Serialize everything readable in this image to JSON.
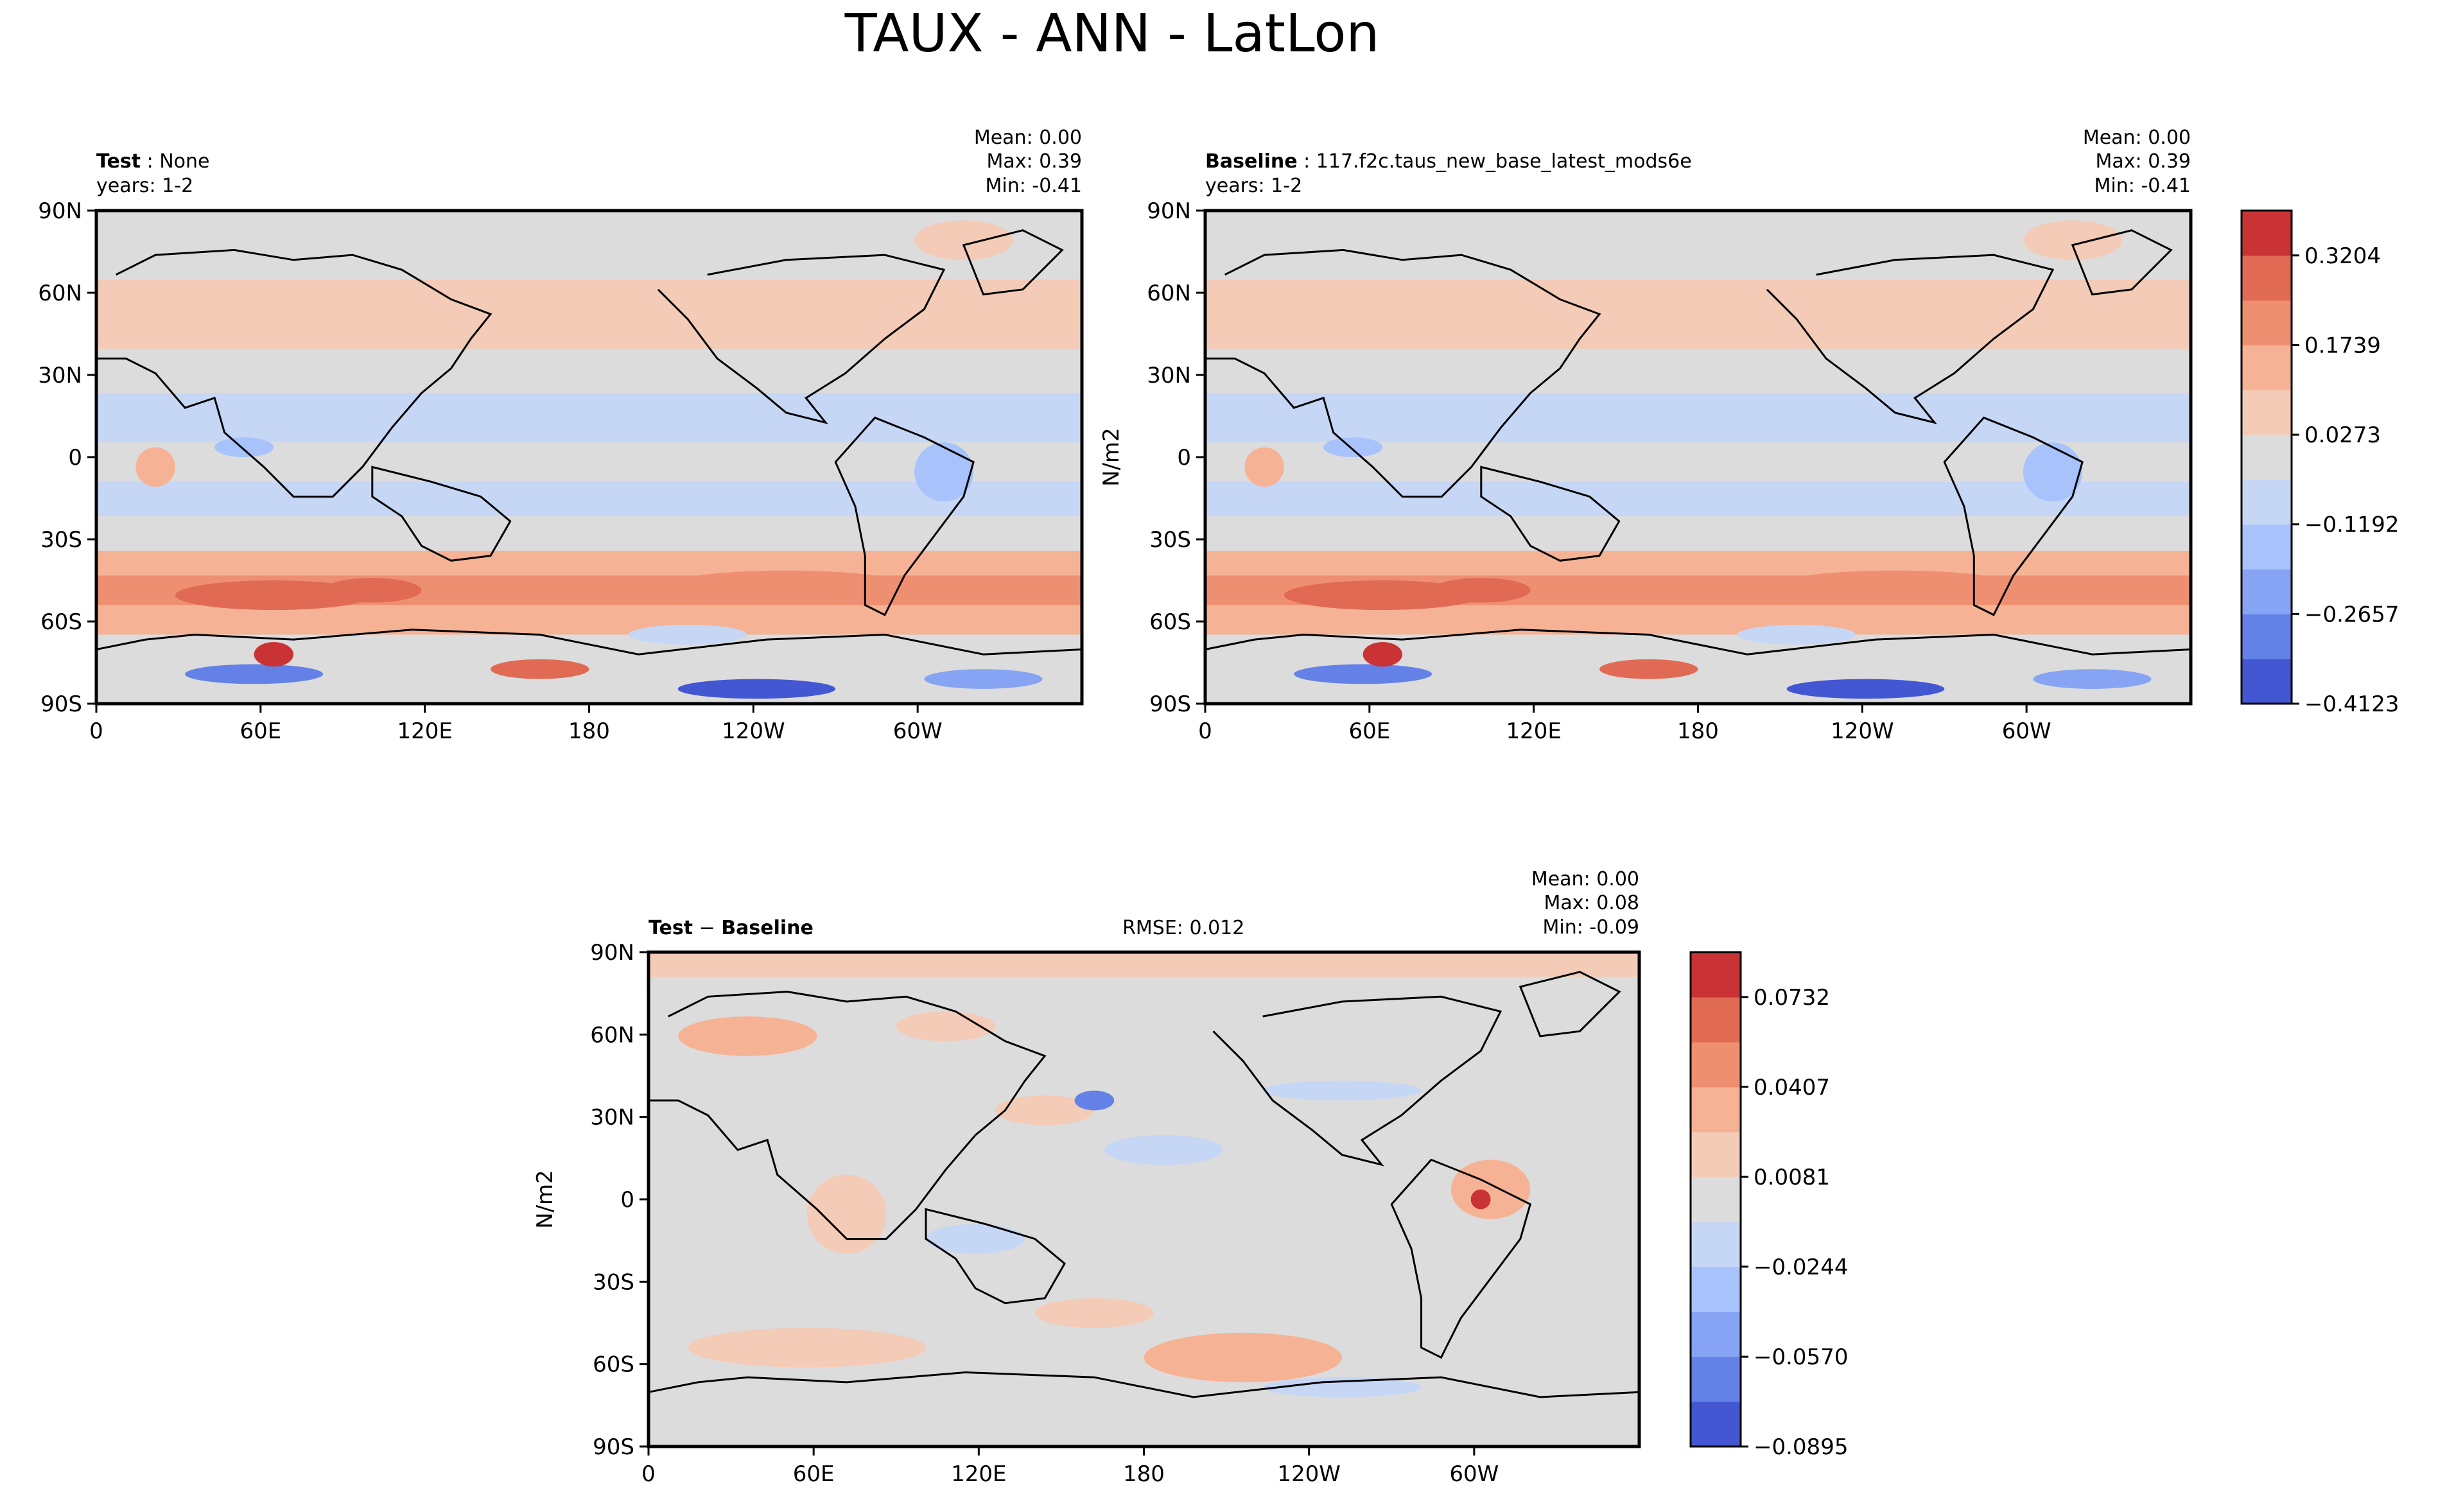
{
  "page": {
    "title": "TAUX - ANN - LatLon"
  },
  "chart_data": [
    {
      "type": "heatmap",
      "id": "test",
      "label_bold": "Test",
      "label_text": "None",
      "years": "years: 1-2",
      "stats": {
        "mean": "Mean:  0.00",
        "max": "Max:  0.39",
        "min": "Min: -0.41"
      },
      "xticks": [
        "0",
        "60E",
        "120E",
        "180",
        "120W",
        "60W"
      ],
      "yticks": [
        "90N",
        "60N",
        "30N",
        "0",
        "30S",
        "60S",
        "90S"
      ],
      "xlim": [
        0,
        360
      ],
      "ylim": [
        -90,
        90
      ],
      "grid": false
    },
    {
      "type": "heatmap",
      "id": "baseline",
      "label_bold": "Baseline",
      "label_text": "117.f2c.taus_new_base_latest_mods6e",
      "years": "years: 1-2",
      "ylabel": "N/m2",
      "stats": {
        "mean": "Mean:  0.00",
        "max": "Max:  0.39",
        "min": "Min: -0.41"
      },
      "xticks": [
        "0",
        "60E",
        "120E",
        "180",
        "120W",
        "60W"
      ],
      "yticks": [
        "90N",
        "60N",
        "30N",
        "0",
        "30S",
        "60S",
        "90S"
      ],
      "xlim": [
        0,
        360
      ],
      "ylim": [
        -90,
        90
      ],
      "grid": false,
      "colorbar": {
        "tick_labels": [
          "0.3204",
          "0.1739",
          "0.0273",
          "−0.1192",
          "−0.2657",
          "−0.4123"
        ],
        "levels": [
          0.3204,
          0.1739,
          0.0273,
          -0.1192,
          -0.2657,
          -0.4123
        ]
      }
    },
    {
      "type": "heatmap",
      "id": "diff",
      "label_bold_a": "Test",
      "label_minus": "−",
      "label_bold_b": "Baseline",
      "rmse": "RMSE: 0.012",
      "ylabel": "N/m2",
      "stats": {
        "mean": "Mean:  0.00",
        "max": "Max:  0.08",
        "min": "Min: -0.09"
      },
      "xticks": [
        "0",
        "60E",
        "120E",
        "180",
        "120W",
        "60W"
      ],
      "yticks": [
        "90N",
        "60N",
        "30N",
        "0",
        "30S",
        "60S",
        "90S"
      ],
      "xlim": [
        0,
        360
      ],
      "ylim": [
        -90,
        90
      ],
      "grid": false,
      "colorbar": {
        "tick_labels": [
          "0.0732",
          "0.0407",
          "0.0081",
          "−0.0244",
          "−0.0570",
          "−0.0895"
        ],
        "levels": [
          0.0732,
          0.0407,
          0.0081,
          -0.0244,
          -0.057,
          -0.0895
        ]
      }
    }
  ],
  "colors": {
    "land_gray": "#dcdcdc",
    "cmap": [
      "#4457d2",
      "#6381e6",
      "#86a3f4",
      "#a8c3fb",
      "#c6d6f5",
      "#dcdcdc",
      "#f3cbb7",
      "#f6b294",
      "#ee8f71",
      "#e06a54",
      "#c93335"
    ]
  }
}
